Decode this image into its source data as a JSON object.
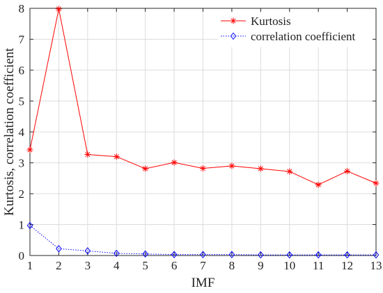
{
  "chart_data": {
    "type": "line",
    "title": "",
    "xlabel": "IMF",
    "ylabel": "Kurtosis, correlation coefficient",
    "x": [
      1,
      2,
      3,
      4,
      5,
      6,
      7,
      8,
      9,
      10,
      11,
      12,
      13
    ],
    "xlim": [
      1,
      13
    ],
    "ylim": [
      0,
      8
    ],
    "xticks": [
      "1",
      "2",
      "3",
      "4",
      "5",
      "6",
      "7",
      "8",
      "9",
      "10",
      "11",
      "12",
      "13"
    ],
    "yticks": [
      "0",
      "1",
      "2",
      "3",
      "4",
      "5",
      "6",
      "7",
      "8"
    ],
    "grid": true,
    "legend_position": "top-right",
    "series": [
      {
        "name": "Kurtosis",
        "color": "#ff0000",
        "marker": "asterisk",
        "line_style": "solid",
        "values": [
          3.42,
          7.98,
          3.27,
          3.2,
          2.81,
          3.01,
          2.82,
          2.9,
          2.81,
          2.72,
          2.29,
          2.73,
          2.34
        ]
      },
      {
        "name": "correlation coefficient",
        "color": "#0000ff",
        "marker": "diamond",
        "line_style": "dotted",
        "values": [
          0.97,
          0.22,
          0.15,
          0.07,
          0.05,
          0.03,
          0.03,
          0.03,
          0.02,
          0.02,
          0.02,
          0.02,
          0.02
        ]
      }
    ]
  }
}
